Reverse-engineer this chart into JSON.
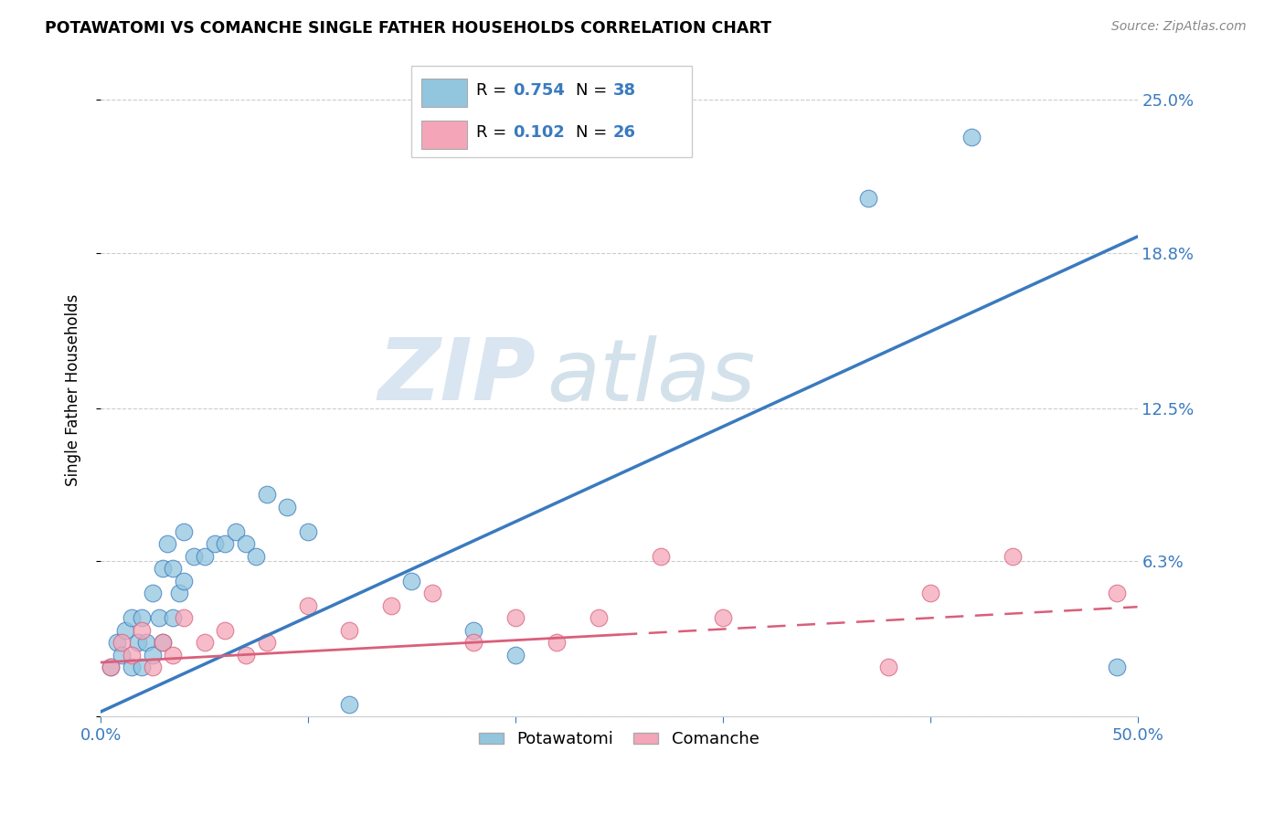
{
  "title": "POTAWATOMI VS COMANCHE SINGLE FATHER HOUSEHOLDS CORRELATION CHART",
  "source": "Source: ZipAtlas.com",
  "ylabel": "Single Father Households",
  "xlim": [
    0.0,
    0.5
  ],
  "ylim": [
    0.0,
    0.265
  ],
  "ytick_positions": [
    0.0,
    0.063,
    0.125,
    0.188,
    0.25
  ],
  "ytick_labels": [
    "",
    "6.3%",
    "12.5%",
    "18.8%",
    "25.0%"
  ],
  "color_blue": "#92c5de",
  "color_pink": "#f4a6b8",
  "color_blue_line": "#3a7abf",
  "color_pink_line": "#d95f7a",
  "color_blue_text": "#3a7abf",
  "watermark_zip": "ZIP",
  "watermark_atlas": "atlas",
  "potawatomi_x": [
    0.005,
    0.008,
    0.01,
    0.012,
    0.015,
    0.015,
    0.018,
    0.02,
    0.02,
    0.022,
    0.025,
    0.025,
    0.028,
    0.03,
    0.03,
    0.032,
    0.035,
    0.035,
    0.038,
    0.04,
    0.04,
    0.045,
    0.05,
    0.055,
    0.06,
    0.065,
    0.07,
    0.075,
    0.08,
    0.09,
    0.1,
    0.12,
    0.15,
    0.18,
    0.2,
    0.37,
    0.42,
    0.49
  ],
  "potawatomi_y": [
    0.02,
    0.03,
    0.025,
    0.035,
    0.02,
    0.04,
    0.03,
    0.02,
    0.04,
    0.03,
    0.025,
    0.05,
    0.04,
    0.03,
    0.06,
    0.07,
    0.04,
    0.06,
    0.05,
    0.055,
    0.075,
    0.065,
    0.065,
    0.07,
    0.07,
    0.075,
    0.07,
    0.065,
    0.09,
    0.085,
    0.075,
    0.005,
    0.055,
    0.035,
    0.025,
    0.21,
    0.235,
    0.02
  ],
  "comanche_x": [
    0.005,
    0.01,
    0.015,
    0.02,
    0.025,
    0.03,
    0.035,
    0.04,
    0.05,
    0.06,
    0.07,
    0.08,
    0.1,
    0.12,
    0.14,
    0.16,
    0.18,
    0.2,
    0.22,
    0.24,
    0.27,
    0.3,
    0.38,
    0.4,
    0.44,
    0.49
  ],
  "comanche_y": [
    0.02,
    0.03,
    0.025,
    0.035,
    0.02,
    0.03,
    0.025,
    0.04,
    0.03,
    0.035,
    0.025,
    0.03,
    0.045,
    0.035,
    0.045,
    0.05,
    0.03,
    0.04,
    0.03,
    0.04,
    0.065,
    0.04,
    0.02,
    0.05,
    0.065,
    0.05
  ]
}
